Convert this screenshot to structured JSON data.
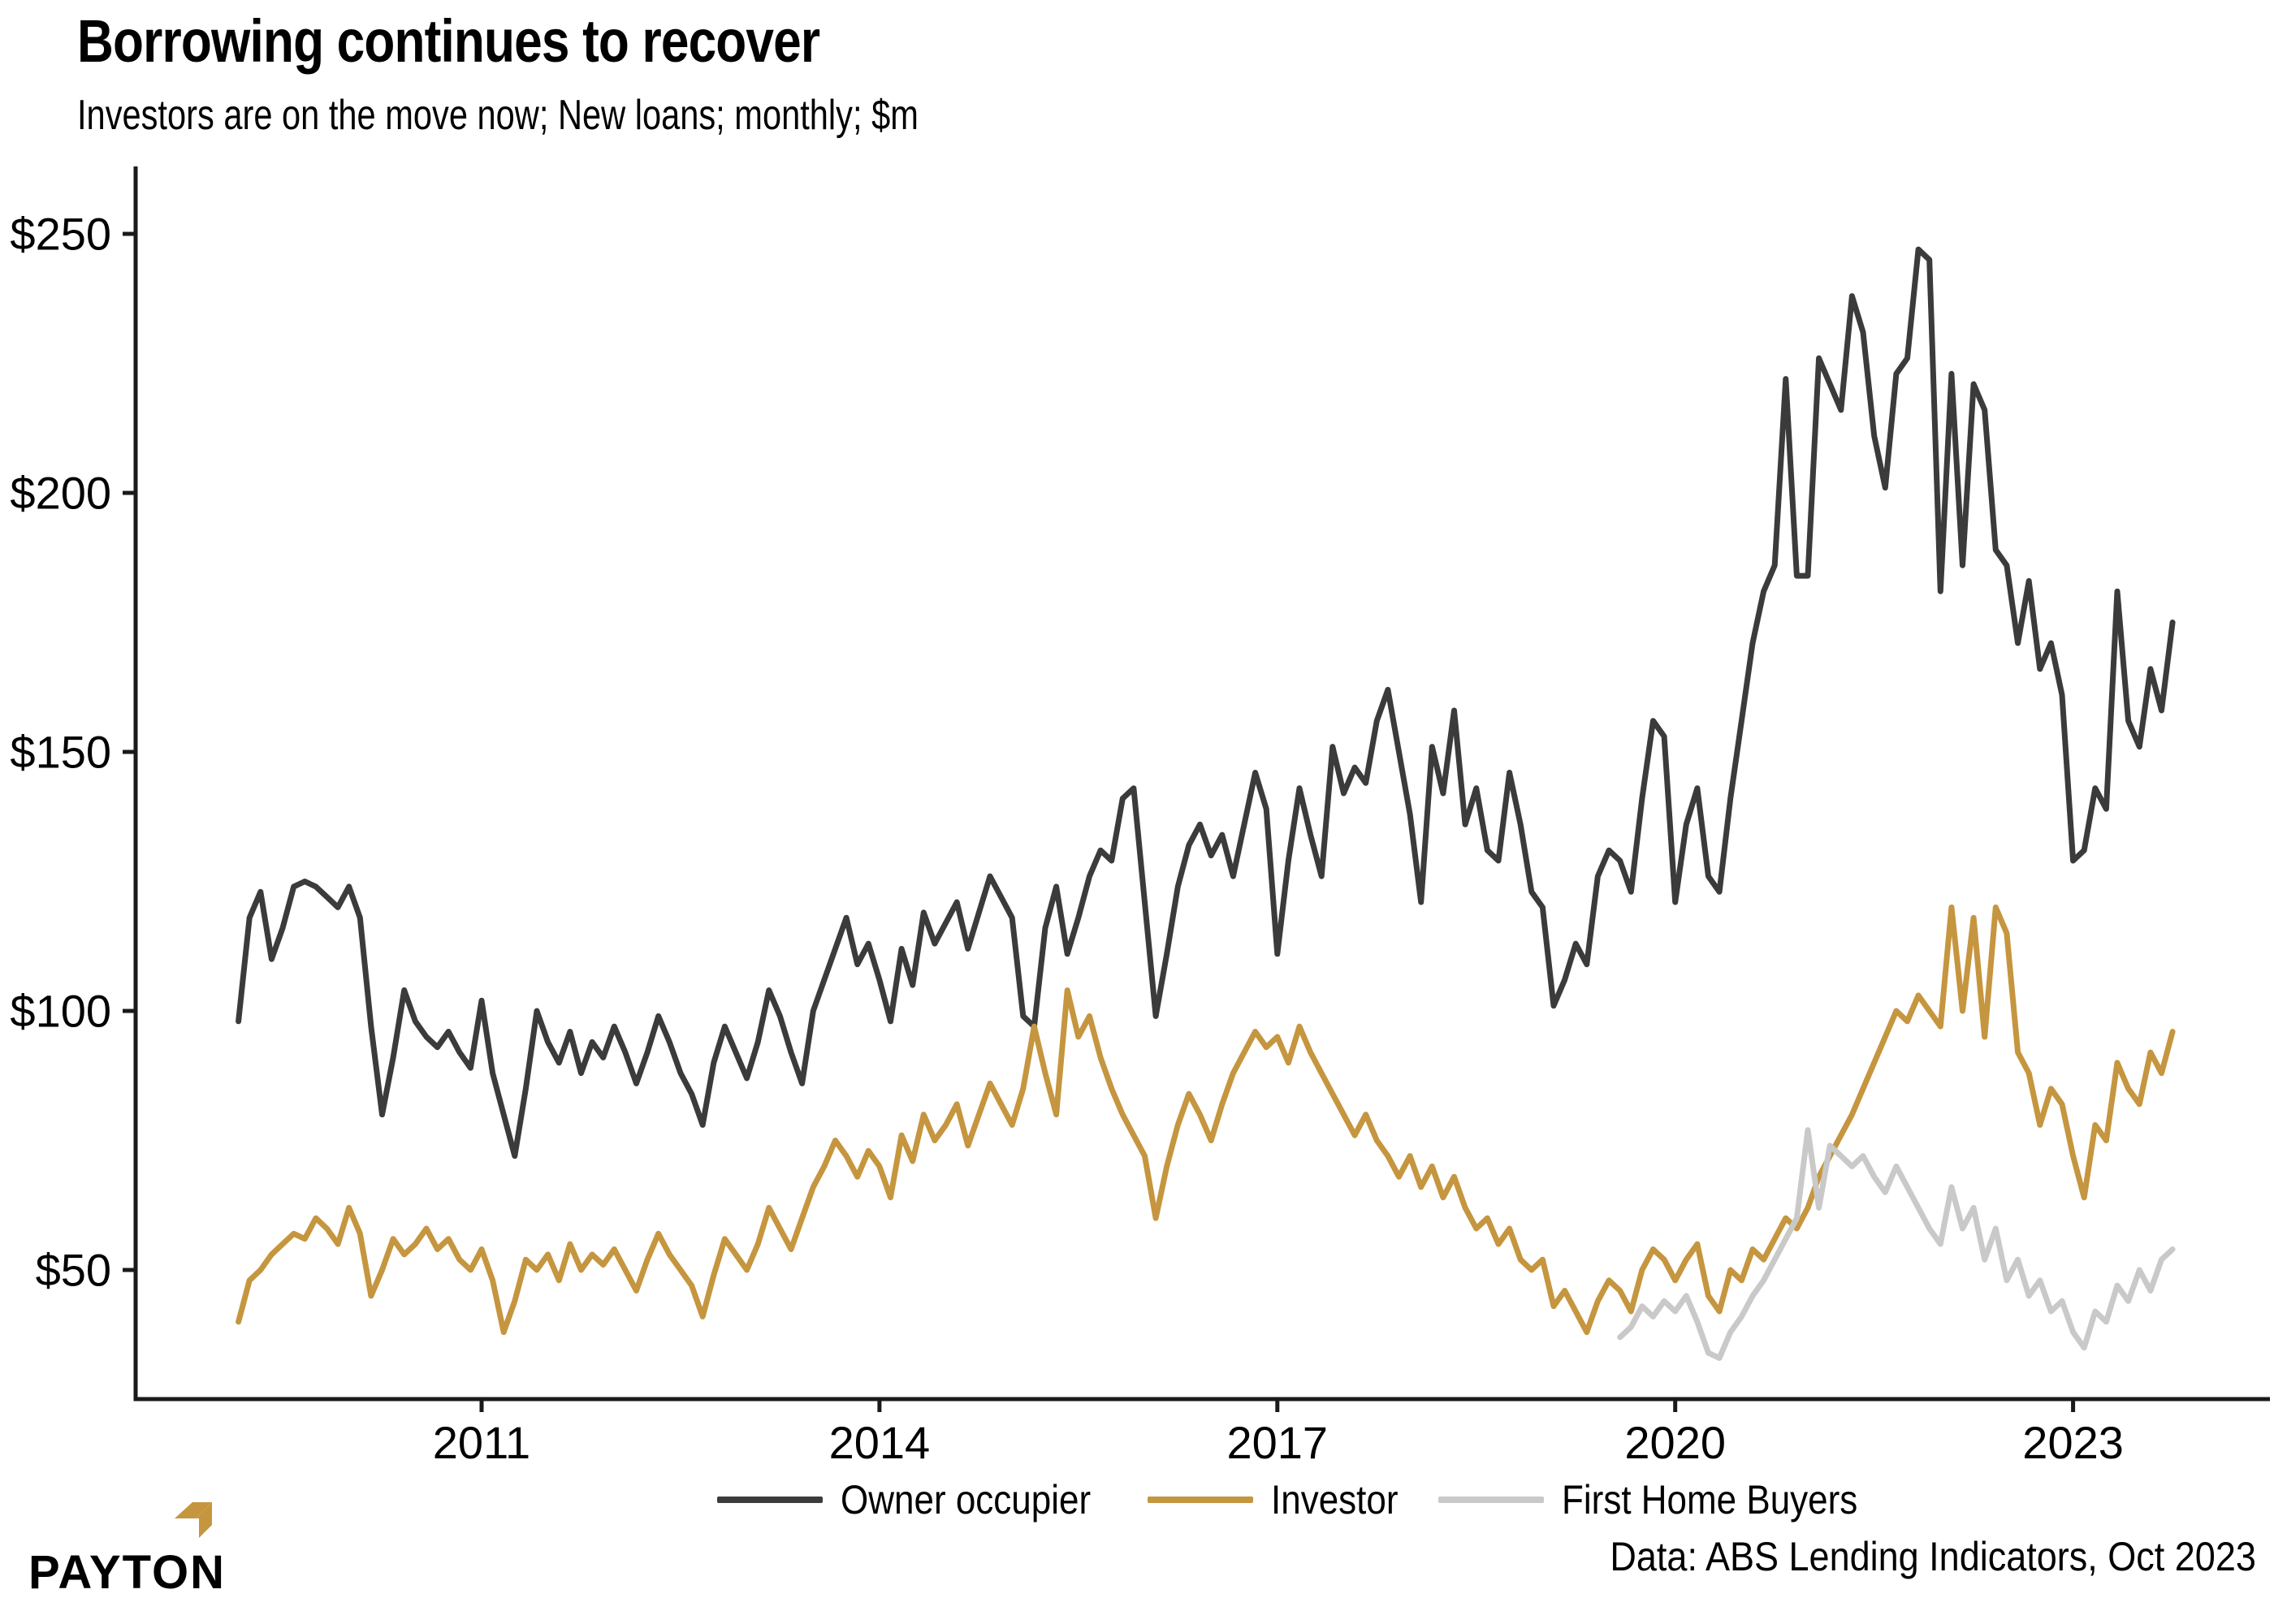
{
  "header": {
    "title": "Borrowing continues to recover",
    "subtitle": "Investors are on the move now; New loans; monthly; $m"
  },
  "caption": "Data: ABS Lending Indicators, Oct 2023",
  "logo": {
    "text": "PAYTON",
    "mark_color": "#c5963f"
  },
  "colors": {
    "owner_occupier": "#3b3b3b",
    "investor": "#c5963f",
    "first_home_buyers": "#c9c9c9",
    "axis": "#1a1a1a",
    "background": "#ffffff"
  },
  "chart_data": {
    "type": "line",
    "title": "Borrowing continues to recover",
    "subtitle": "Investors are on the move now; New loans; monthly; $m",
    "xlabel": "",
    "ylabel": "New loans, monthly, $m",
    "x_axis": {
      "tick_years": [
        2011,
        2014,
        2017,
        2020,
        2023
      ]
    },
    "y_axis": {
      "prefix": "$",
      "ticks": [
        50,
        100,
        150,
        200,
        250
      ],
      "range": [
        25,
        257
      ]
    },
    "grid": false,
    "legend_position": "bottom",
    "series": [
      {
        "name": "Owner occupier",
        "color": "#3b3b3b",
        "start": "2009-03",
        "monthly_values": [
          98,
          118,
          123,
          110,
          116,
          124,
          125,
          124,
          122,
          120,
          124,
          118,
          97,
          80,
          91,
          104,
          98,
          95,
          93,
          96,
          92,
          89,
          102,
          88,
          80,
          72,
          85,
          100,
          94,
          90,
          96,
          88,
          94,
          91,
          97,
          92,
          86,
          92,
          99,
          94,
          88,
          84,
          78,
          90,
          97,
          92,
          87,
          94,
          104,
          99,
          92,
          86,
          100,
          106,
          112,
          118,
          109,
          113,
          106,
          98,
          112,
          105,
          119,
          113,
          117,
          121,
          112,
          119,
          126,
          122,
          118,
          99,
          97,
          116,
          124,
          111,
          118,
          126,
          131,
          129,
          141,
          143,
          121,
          99,
          111,
          124,
          132,
          136,
          130,
          134,
          126,
          136,
          146,
          139,
          111,
          129,
          143,
          134,
          126,
          151,
          142,
          147,
          144,
          156,
          162,
          150,
          138,
          121,
          151,
          142,
          158,
          136,
          143,
          131,
          129,
          146,
          136,
          123,
          120,
          101,
          106,
          113,
          109,
          126,
          131,
          129,
          123,
          141,
          156,
          153,
          121,
          136,
          143,
          126,
          123,
          141,
          156,
          171,
          181,
          186,
          222,
          184,
          184,
          226,
          221,
          216,
          238,
          231,
          211,
          201,
          223,
          226,
          247,
          245,
          181,
          223,
          186,
          221,
          216,
          189,
          186,
          171,
          183,
          166,
          171,
          161,
          129,
          131,
          143,
          139,
          181,
          156,
          151,
          166,
          158,
          175
        ]
      },
      {
        "name": "Investor",
        "color": "#c5963f",
        "start": "2009-03",
        "monthly_values": [
          40,
          48,
          50,
          53,
          55,
          57,
          56,
          60,
          58,
          55,
          62,
          57,
          45,
          50,
          56,
          53,
          55,
          58,
          54,
          56,
          52,
          50,
          54,
          48,
          38,
          44,
          52,
          50,
          53,
          48,
          55,
          50,
          53,
          51,
          54,
          50,
          46,
          52,
          57,
          53,
          50,
          47,
          41,
          49,
          56,
          53,
          50,
          55,
          62,
          58,
          54,
          60,
          66,
          70,
          75,
          72,
          68,
          73,
          70,
          64,
          76,
          71,
          80,
          75,
          78,
          82,
          74,
          80,
          86,
          82,
          78,
          85,
          97,
          88,
          80,
          104,
          95,
          99,
          91,
          85,
          80,
          76,
          72,
          60,
          70,
          78,
          84,
          80,
          75,
          82,
          88,
          92,
          96,
          93,
          95,
          90,
          97,
          92,
          88,
          84,
          80,
          76,
          80,
          75,
          72,
          68,
          72,
          66,
          70,
          64,
          68,
          62,
          58,
          60,
          55,
          58,
          52,
          50,
          52,
          43,
          46,
          42,
          38,
          44,
          48,
          46,
          42,
          50,
          54,
          52,
          48,
          52,
          55,
          45,
          42,
          50,
          48,
          54,
          52,
          56,
          60,
          58,
          62,
          68,
          72,
          76,
          80,
          85,
          90,
          95,
          100,
          98,
          103,
          100,
          97,
          120,
          100,
          118,
          95,
          120,
          115,
          92,
          88,
          78,
          85,
          82,
          72,
          64,
          78,
          75,
          90,
          85,
          82,
          92,
          88,
          96
        ]
      },
      {
        "name": "First Home Buyers",
        "color": "#c9c9c9",
        "start": "2019-08",
        "monthly_values": [
          37,
          39,
          43,
          41,
          44,
          42,
          45,
          40,
          34,
          33,
          38,
          41,
          45,
          48,
          52,
          56,
          60,
          77,
          62,
          74,
          72,
          70,
          72,
          68,
          65,
          70,
          66,
          62,
          58,
          55,
          66,
          58,
          62,
          52,
          58,
          48,
          52,
          45,
          48,
          42,
          44,
          38,
          35,
          42,
          40,
          47,
          44,
          50,
          46,
          52,
          54
        ]
      }
    ]
  }
}
